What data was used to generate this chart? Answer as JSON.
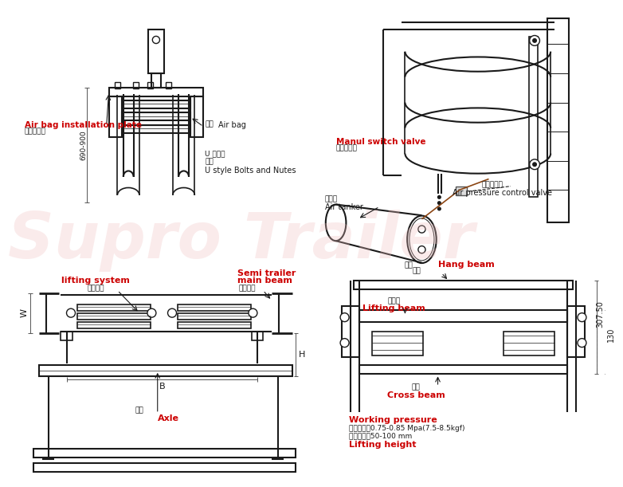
{
  "bg_color": "#ffffff",
  "line_color": "#1a1a1a",
  "red_color": "#cc0000",
  "gray_color": "#555555",
  "pink_wm": "#f0c0c0",
  "wm_text": "Supro Trailer",
  "wm_alpha": 0.3,
  "annotations": {
    "airbag_install_plate": "Air bag installation plate",
    "airbag_install_plate_cn": "气囊安装板",
    "airbag_en": "Air bag",
    "airbag_cn": "气囊",
    "u_bolt_cn": "U 型螺栓\n螺母",
    "u_bolt_en": "U style Bolts and Nutes",
    "dim_690_900": "690-900",
    "manual_switch": "Manul switch valve",
    "manual_switch_cn": "手拉开关阀",
    "air_tanker_cn": "储气筒",
    "air_tanker_en": "Air tanker",
    "pressure_ctrl_cn": "压力控制阀",
    "pressure_ctrl_en": "Air pressure control valve",
    "hang_beam_cn": "撑杆",
    "hang_beam_en": "Hang beam",
    "lifting_beam_cn": "提升梁",
    "lifting_beam_en": "Lifting beam",
    "cross_beam_cn": "横梁",
    "cross_beam_en": "Cross beam",
    "dim_307_50": "307.50",
    "dim_130": "130",
    "lifting_system_en": "lifting system",
    "lifting_system_cn": "提升装置",
    "semi_trailer_en": "Semi trailer",
    "main_beam_en": "main beam",
    "main_beam_cn": "挂车\n大梁",
    "axle_cn": "轴管",
    "axle_en": "Axle",
    "dim_B": "B",
    "dim_W": "W",
    "dim_H": "H",
    "working_pressure": "Working pressure",
    "wp_line1": "工作压力：0.75-0.85 Mpa(7.5-8.5kgf)",
    "wp_line2": "提升高度：50-100 mm",
    "lifting_height": "Lifting height"
  }
}
